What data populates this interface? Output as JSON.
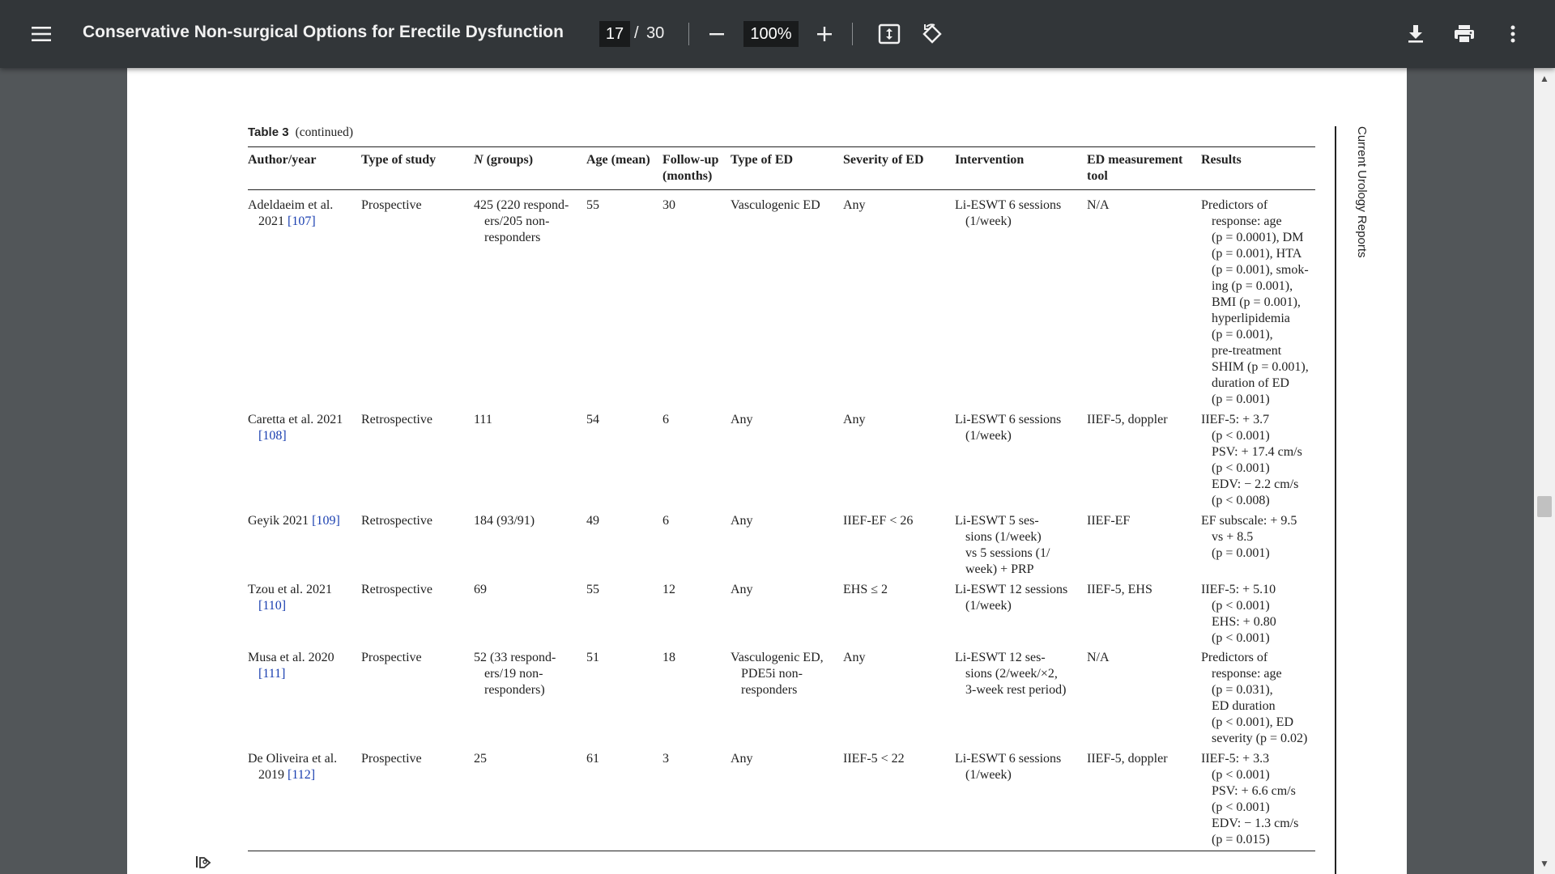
{
  "toolbar": {
    "title": "Conservative Non-surgical Options for Erectile Dysfunction",
    "current_page": "17",
    "page_separator": "/",
    "total_pages": "30",
    "zoom": "100%",
    "icons": [
      "menu-icon",
      "zoom-out-icon",
      "zoom-in-icon",
      "fit-page-icon",
      "rotate-icon",
      "download-icon",
      "print-icon",
      "more-vert-icon"
    ]
  },
  "page": {
    "table_label": "Table 3",
    "table_continued": "(continued)",
    "journal": "Current Urology Reports",
    "headers": [
      {
        "lines": [
          "Author/year"
        ]
      },
      {
        "lines": [
          "Type of study"
        ]
      },
      {
        "lines": [
          "N (groups)"
        ]
      },
      {
        "lines": [
          "Age (mean)"
        ]
      },
      {
        "lines": [
          "Follow-up",
          "(months)"
        ]
      },
      {
        "lines": [
          "Type of ED"
        ]
      },
      {
        "lines": [
          "Severity of ED"
        ]
      },
      {
        "lines": [
          "Intervention"
        ]
      },
      {
        "lines": [
          "ED measurement",
          "tool"
        ]
      },
      {
        "lines": [
          "Results"
        ]
      }
    ],
    "rows": [
      {
        "author": [
          "Adeldaeim et al.",
          "2021 [107]"
        ],
        "type": [
          "Prospective"
        ],
        "n": [
          "425 (220 respond-",
          "ers/205 non-",
          "responders"
        ],
        "age": [
          "55"
        ],
        "followup": [
          "30"
        ],
        "ed_type": [
          "Vasculogenic ED"
        ],
        "severity": [
          "Any"
        ],
        "intervention": [
          "Li-ESWT 6 sessions",
          "(1/week)"
        ],
        "tool": [
          "N/A"
        ],
        "results": [
          "Predictors of",
          "response: age",
          "(p = 0.0001), DM",
          "(p = 0.001), HTA",
          "(p = 0.001), smok-",
          "ing (p = 0.001),",
          "BMI (p = 0.001),",
          "hyperlipidemia",
          "(p = 0.001),",
          "pre-treatment",
          "SHIM (p = 0.001),",
          "duration of ED",
          "(p = 0.001)"
        ]
      },
      {
        "author": [
          "Caretta et al. 2021",
          "[108]"
        ],
        "type": [
          "Retrospective"
        ],
        "n": [
          "111"
        ],
        "age": [
          "54"
        ],
        "followup": [
          "6"
        ],
        "ed_type": [
          "Any"
        ],
        "severity": [
          "Any"
        ],
        "intervention": [
          "Li-ESWT 6 sessions",
          "(1/week)"
        ],
        "tool": [
          "IIEF-5, doppler"
        ],
        "results": [
          "IIEF-5: + 3.7",
          "(p < 0.001)",
          "PSV: + 17.4 cm/s",
          "(p < 0.001)",
          "EDV: − 2.2 cm/s",
          "(p < 0.008)"
        ]
      },
      {
        "author": [
          "Geyik 2021 [109]"
        ],
        "type": [
          "Retrospective"
        ],
        "n": [
          "184 (93/91)"
        ],
        "age": [
          "49"
        ],
        "followup": [
          "6"
        ],
        "ed_type": [
          "Any"
        ],
        "severity": [
          "IIEF-EF < 26"
        ],
        "intervention": [
          "Li-ESWT 5 ses-",
          "sions (1/week)",
          "vs 5 sessions (1/",
          "week) + PRP"
        ],
        "tool": [
          "IIEF-EF"
        ],
        "results": [
          "EF subscale: + 9.5",
          "vs + 8.5",
          "(p = 0.001)"
        ]
      },
      {
        "author": [
          "Tzou et al. 2021",
          "[110]"
        ],
        "type": [
          "Retrospective"
        ],
        "n": [
          "69"
        ],
        "age": [
          "55"
        ],
        "followup": [
          "12"
        ],
        "ed_type": [
          "Any"
        ],
        "severity": [
          "EHS ≤ 2"
        ],
        "intervention": [
          "Li-ESWT 12 sessions",
          "(1/week)"
        ],
        "tool": [
          "IIEF-5, EHS"
        ],
        "results": [
          "IIEF-5: + 5.10",
          "(p < 0.001)",
          "EHS: + 0.80",
          "(p < 0.001)"
        ]
      },
      {
        "author": [
          "Musa et al. 2020",
          "[111]"
        ],
        "type": [
          "Prospective"
        ],
        "n": [
          "52 (33 respond-",
          "ers/19 non-",
          "responders)"
        ],
        "age": [
          "51"
        ],
        "followup": [
          "18"
        ],
        "ed_type": [
          "Vasculogenic ED,",
          "PDE5i non-",
          "responders"
        ],
        "severity": [
          "Any"
        ],
        "intervention": [
          "Li-ESWT 12 ses-",
          "sions (2/week/×2,",
          "3-week rest period)"
        ],
        "tool": [
          "N/A"
        ],
        "results": [
          "Predictors of",
          "response: age",
          "(p = 0.031),",
          "ED duration",
          "(p < 0.001), ED",
          "severity (p = 0.02)"
        ]
      },
      {
        "author": [
          "De Oliveira et al.",
          "2019 [112]"
        ],
        "type": [
          "Prospective"
        ],
        "n": [
          "25"
        ],
        "age": [
          "61"
        ],
        "followup": [
          "3"
        ],
        "ed_type": [
          "Any"
        ],
        "severity": [
          "IIEF-5 < 22"
        ],
        "intervention": [
          "Li-ESWT 6 sessions",
          "(1/week)"
        ],
        "tool": [
          "IIEF-5, doppler"
        ],
        "results": [
          "IIEF-5: + 3.3",
          "(p < 0.001)",
          "PSV: + 6.6 cm/s",
          "(p < 0.001)",
          "EDV: − 1.3 cm/s",
          "(p = 0.015)"
        ]
      }
    ]
  }
}
